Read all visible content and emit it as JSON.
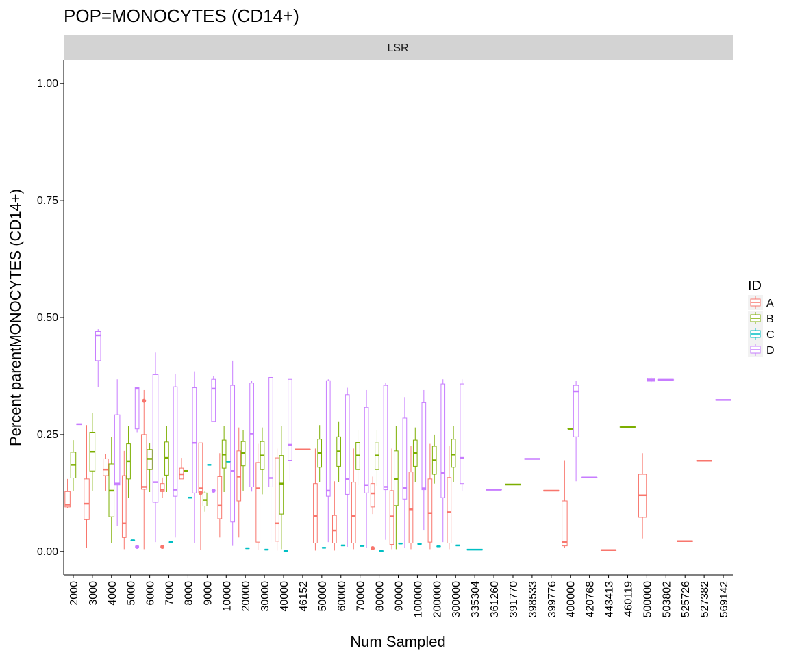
{
  "chart_data": {
    "type": "boxplot",
    "title": "POP=MONOCYTES (CD14+)",
    "facet": "LSR",
    "xlabel": "Num Sampled",
    "ylabel": "Percent parentMONOCYTES (CD14+)",
    "ylim": [
      -0.05,
      1.05
    ],
    "yticks": [
      0.0,
      0.25,
      0.5,
      0.75,
      1.0
    ],
    "ytick_labels": [
      "0.00",
      "0.25",
      "0.50",
      "0.75",
      "1.00"
    ],
    "grid": false,
    "legend": {
      "title": "ID",
      "position": "right"
    },
    "categories": [
      "2000",
      "3000",
      "4000",
      "5000",
      "6000",
      "7000",
      "8000",
      "9000",
      "10000",
      "20000",
      "30000",
      "40000",
      "46152",
      "50000",
      "60000",
      "70000",
      "80000",
      "90000",
      "100000",
      "200000",
      "300000",
      "335304",
      "361260",
      "391770",
      "398533",
      "399776",
      "400000",
      "420768",
      "443413",
      "460119",
      "500000",
      "503802",
      "525726",
      "527382",
      "569142"
    ],
    "series": [
      {
        "name": "A",
        "color": "#F8766D",
        "boxes": [
          {
            "x": "2000",
            "min": 0.092,
            "q1": 0.095,
            "med": 0.1,
            "q3": 0.128,
            "max": 0.155
          },
          {
            "x": "3000",
            "min": 0.008,
            "q1": 0.068,
            "med": 0.102,
            "q3": 0.155,
            "max": 0.27
          },
          {
            "x": "4000",
            "min": 0.13,
            "q1": 0.162,
            "med": 0.175,
            "q3": 0.198,
            "max": 0.208
          },
          {
            "x": "5000",
            "min": 0.005,
            "q1": 0.03,
            "med": 0.06,
            "q3": 0.162,
            "max": 0.215
          },
          {
            "x": "6000",
            "min": 0.005,
            "q1": 0.133,
            "med": 0.138,
            "q3": 0.25,
            "max": 0.345,
            "outliers": [
              0.322
            ]
          },
          {
            "x": "7000",
            "min": 0.115,
            "q1": 0.128,
            "med": 0.132,
            "q3": 0.145,
            "max": 0.158,
            "outliers": [
              0.01
            ]
          },
          {
            "x": "8000",
            "min": 0.155,
            "q1": 0.155,
            "med": 0.165,
            "q3": 0.178,
            "max": 0.2
          },
          {
            "x": "9000",
            "min": 0.004,
            "q1": 0.125,
            "med": 0.135,
            "q3": 0.232,
            "max": 0.232,
            "outliers": [
              0.125
            ]
          },
          {
            "x": "10000",
            "min": 0.03,
            "q1": 0.07,
            "med": 0.098,
            "q3": 0.16,
            "max": 0.21
          },
          {
            "x": "20000",
            "min": 0.03,
            "q1": 0.108,
            "med": 0.16,
            "q3": 0.215,
            "max": 0.265
          },
          {
            "x": "30000",
            "min": 0.003,
            "q1": 0.02,
            "med": 0.135,
            "q3": 0.19,
            "max": 0.23
          },
          {
            "x": "40000",
            "min": 0.002,
            "q1": 0.022,
            "med": 0.06,
            "q3": 0.2,
            "max": 0.22
          },
          {
            "x": "46152",
            "min": 0.218,
            "q1": 0.218,
            "med": 0.218,
            "q3": 0.218,
            "max": 0.218
          },
          {
            "x": "50000",
            "min": 0.002,
            "q1": 0.018,
            "med": 0.076,
            "q3": 0.145,
            "max": 0.22
          },
          {
            "x": "60000",
            "min": 0.002,
            "q1": 0.018,
            "med": 0.045,
            "q3": 0.077,
            "max": 0.15
          },
          {
            "x": "70000",
            "min": 0.005,
            "q1": 0.018,
            "med": 0.076,
            "q3": 0.148,
            "max": 0.22
          },
          {
            "x": "80000",
            "min": 0.08,
            "q1": 0.095,
            "med": 0.124,
            "q3": 0.145,
            "max": 0.16,
            "outliers": [
              0.007
            ]
          },
          {
            "x": "90000",
            "min": 0.005,
            "q1": 0.015,
            "med": 0.075,
            "q3": 0.13,
            "max": 0.22
          },
          {
            "x": "100000",
            "min": 0.005,
            "q1": 0.018,
            "med": 0.09,
            "q3": 0.17,
            "max": 0.225
          },
          {
            "x": "200000",
            "min": 0.005,
            "q1": 0.02,
            "med": 0.082,
            "q3": 0.155,
            "max": 0.23
          },
          {
            "x": "300000",
            "min": 0.005,
            "q1": 0.018,
            "med": 0.084,
            "q3": 0.158,
            "max": 0.225
          },
          {
            "x": "399776",
            "min": 0.13,
            "q1": 0.13,
            "med": 0.13,
            "q3": 0.13,
            "max": 0.13
          },
          {
            "x": "400000",
            "min": 0.008,
            "q1": 0.012,
            "med": 0.02,
            "q3": 0.108,
            "max": 0.195
          },
          {
            "x": "443413",
            "min": 0.003,
            "q1": 0.003,
            "med": 0.003,
            "q3": 0.003,
            "max": 0.003
          },
          {
            "x": "500000",
            "min": 0.028,
            "q1": 0.073,
            "med": 0.12,
            "q3": 0.165,
            "max": 0.21
          },
          {
            "x": "525726",
            "min": 0.022,
            "q1": 0.022,
            "med": 0.022,
            "q3": 0.022,
            "max": 0.022
          },
          {
            "x": "527382",
            "min": 0.194,
            "q1": 0.194,
            "med": 0.194,
            "q3": 0.194,
            "max": 0.194
          }
        ]
      },
      {
        "name": "B",
        "color": "#7CAE00",
        "boxes": [
          {
            "x": "2000",
            "min": 0.13,
            "q1": 0.157,
            "med": 0.185,
            "q3": 0.212,
            "max": 0.238
          },
          {
            "x": "3000",
            "min": 0.13,
            "q1": 0.172,
            "med": 0.213,
            "q3": 0.255,
            "max": 0.296
          },
          {
            "x": "4000",
            "min": 0.018,
            "q1": 0.074,
            "med": 0.13,
            "q3": 0.187,
            "max": 0.245
          },
          {
            "x": "5000",
            "min": 0.115,
            "q1": 0.155,
            "med": 0.193,
            "q3": 0.23,
            "max": 0.268
          },
          {
            "x": "6000",
            "min": 0.127,
            "q1": 0.175,
            "med": 0.198,
            "q3": 0.218,
            "max": 0.232
          },
          {
            "x": "7000",
            "min": 0.127,
            "q1": 0.163,
            "med": 0.2,
            "q3": 0.234,
            "max": 0.268
          },
          {
            "x": "8000",
            "min": 0.172,
            "q1": 0.172,
            "med": 0.172,
            "q3": 0.172,
            "max": 0.172
          },
          {
            "x": "9000",
            "min": 0.085,
            "q1": 0.097,
            "med": 0.11,
            "q3": 0.125,
            "max": 0.13
          },
          {
            "x": "10000",
            "min": 0.127,
            "q1": 0.178,
            "med": 0.207,
            "q3": 0.238,
            "max": 0.268
          },
          {
            "x": "20000",
            "min": 0.13,
            "q1": 0.183,
            "med": 0.21,
            "q3": 0.235,
            "max": 0.26
          },
          {
            "x": "30000",
            "min": 0.122,
            "q1": 0.175,
            "med": 0.205,
            "q3": 0.235,
            "max": 0.265
          },
          {
            "x": "40000",
            "min": 0.005,
            "q1": 0.08,
            "med": 0.145,
            "q3": 0.205,
            "max": 0.268
          },
          {
            "x": "50000",
            "min": 0.148,
            "q1": 0.18,
            "med": 0.21,
            "q3": 0.24,
            "max": 0.27
          },
          {
            "x": "60000",
            "min": 0.148,
            "q1": 0.182,
            "med": 0.214,
            "q3": 0.245,
            "max": 0.278
          },
          {
            "x": "70000",
            "min": 0.142,
            "q1": 0.175,
            "med": 0.205,
            "q3": 0.233,
            "max": 0.26
          },
          {
            "x": "80000",
            "min": 0.14,
            "q1": 0.175,
            "med": 0.205,
            "q3": 0.232,
            "max": 0.26
          },
          {
            "x": "90000",
            "min": 0.005,
            "q1": 0.098,
            "med": 0.155,
            "q3": 0.215,
            "max": 0.268
          },
          {
            "x": "100000",
            "min": 0.148,
            "q1": 0.182,
            "med": 0.21,
            "q3": 0.238,
            "max": 0.265
          },
          {
            "x": "200000",
            "min": 0.145,
            "q1": 0.165,
            "med": 0.195,
            "q3": 0.225,
            "max": 0.25
          },
          {
            "x": "300000",
            "min": 0.148,
            "q1": 0.18,
            "med": 0.207,
            "q3": 0.24,
            "max": 0.268
          },
          {
            "x": "391770",
            "min": 0.143,
            "q1": 0.143,
            "med": 0.143,
            "q3": 0.143,
            "max": 0.143
          },
          {
            "x": "400000",
            "min": 0.262,
            "q1": 0.262,
            "med": 0.262,
            "q3": 0.262,
            "max": 0.262
          },
          {
            "x": "460119",
            "min": 0.266,
            "q1": 0.266,
            "med": 0.266,
            "q3": 0.266,
            "max": 0.266
          }
        ]
      },
      {
        "name": "C",
        "color": "#00BFC4",
        "boxes": [
          {
            "x": "5000",
            "min": 0.024,
            "q1": 0.024,
            "med": 0.024,
            "q3": 0.024,
            "max": 0.024
          },
          {
            "x": "7000",
            "min": 0.02,
            "q1": 0.02,
            "med": 0.02,
            "q3": 0.02,
            "max": 0.02
          },
          {
            "x": "8000",
            "min": 0.115,
            "q1": 0.115,
            "med": 0.115,
            "q3": 0.115,
            "max": 0.115
          },
          {
            "x": "9000",
            "min": 0.185,
            "q1": 0.185,
            "med": 0.185,
            "q3": 0.185,
            "max": 0.185
          },
          {
            "x": "10000",
            "min": 0.192,
            "q1": 0.192,
            "med": 0.192,
            "q3": 0.192,
            "max": 0.192
          },
          {
            "x": "20000",
            "min": 0.007,
            "q1": 0.007,
            "med": 0.007,
            "q3": 0.007,
            "max": 0.007
          },
          {
            "x": "30000",
            "min": 0.004,
            "q1": 0.004,
            "med": 0.004,
            "q3": 0.004,
            "max": 0.004
          },
          {
            "x": "40000",
            "min": 0.001,
            "q1": 0.001,
            "med": 0.001,
            "q3": 0.001,
            "max": 0.001
          },
          {
            "x": "50000",
            "min": 0.008,
            "q1": 0.008,
            "med": 0.008,
            "q3": 0.008,
            "max": 0.008
          },
          {
            "x": "60000",
            "min": 0.013,
            "q1": 0.013,
            "med": 0.013,
            "q3": 0.013,
            "max": 0.013
          },
          {
            "x": "70000",
            "min": 0.012,
            "q1": 0.012,
            "med": 0.012,
            "q3": 0.012,
            "max": 0.012
          },
          {
            "x": "80000",
            "min": 0.001,
            "q1": 0.001,
            "med": 0.001,
            "q3": 0.001,
            "max": 0.001
          },
          {
            "x": "90000",
            "min": 0.017,
            "q1": 0.017,
            "med": 0.017,
            "q3": 0.017,
            "max": 0.017
          },
          {
            "x": "100000",
            "min": 0.016,
            "q1": 0.016,
            "med": 0.016,
            "q3": 0.016,
            "max": 0.016
          },
          {
            "x": "200000",
            "min": 0.011,
            "q1": 0.011,
            "med": 0.011,
            "q3": 0.011,
            "max": 0.011
          },
          {
            "x": "300000",
            "min": 0.013,
            "q1": 0.013,
            "med": 0.013,
            "q3": 0.013,
            "max": 0.013
          },
          {
            "x": "335304",
            "min": 0.004,
            "q1": 0.004,
            "med": 0.004,
            "q3": 0.004,
            "max": 0.004
          }
        ]
      },
      {
        "name": "D",
        "color": "#C77CFF",
        "boxes": [
          {
            "x": "2000",
            "min": 0.272,
            "q1": 0.272,
            "med": 0.272,
            "q3": 0.272,
            "max": 0.272
          },
          {
            "x": "3000",
            "min": 0.352,
            "q1": 0.408,
            "med": 0.462,
            "q3": 0.47,
            "max": 0.475
          },
          {
            "x": "4000",
            "min": 0.055,
            "q1": 0.142,
            "med": 0.145,
            "q3": 0.292,
            "max": 0.368
          },
          {
            "x": "5000",
            "min": 0.255,
            "q1": 0.262,
            "med": 0.348,
            "q3": 0.35,
            "max": 0.352,
            "outliers": [
              0.01
            ]
          },
          {
            "x": "6000",
            "min": 0.02,
            "q1": 0.105,
            "med": 0.148,
            "q3": 0.378,
            "max": 0.425
          },
          {
            "x": "7000",
            "min": 0.03,
            "q1": 0.118,
            "med": 0.132,
            "q3": 0.352,
            "max": 0.38
          },
          {
            "x": "8000",
            "min": 0.018,
            "q1": 0.125,
            "med": 0.232,
            "q3": 0.35,
            "max": 0.385
          },
          {
            "x": "9000",
            "min": 0.278,
            "q1": 0.278,
            "med": 0.348,
            "q3": 0.368,
            "max": 0.375,
            "outliers": [
              0.13
            ]
          },
          {
            "x": "10000",
            "min": 0.012,
            "q1": 0.063,
            "med": 0.172,
            "q3": 0.355,
            "max": 0.408
          },
          {
            "x": "20000",
            "min": 0.128,
            "q1": 0.138,
            "med": 0.252,
            "q3": 0.36,
            "max": 0.365
          },
          {
            "x": "30000",
            "min": 0.018,
            "q1": 0.138,
            "med": 0.157,
            "q3": 0.372,
            "max": 0.39
          },
          {
            "x": "40000",
            "min": 0.15,
            "q1": 0.195,
            "med": 0.228,
            "q3": 0.368,
            "max": 0.368
          },
          {
            "x": "50000",
            "min": 0.02,
            "q1": 0.118,
            "med": 0.13,
            "q3": 0.365,
            "max": 0.368
          },
          {
            "x": "60000",
            "min": 0.01,
            "q1": 0.122,
            "med": 0.155,
            "q3": 0.335,
            "max": 0.35
          },
          {
            "x": "70000",
            "min": 0.008,
            "q1": 0.125,
            "med": 0.142,
            "q3": 0.308,
            "max": 0.345
          },
          {
            "x": "80000",
            "min": 0.025,
            "q1": 0.132,
            "med": 0.138,
            "q3": 0.355,
            "max": 0.36
          },
          {
            "x": "90000",
            "min": 0.008,
            "q1": 0.112,
            "med": 0.136,
            "q3": 0.285,
            "max": 0.33
          },
          {
            "x": "100000",
            "min": 0.045,
            "q1": 0.132,
            "med": 0.135,
            "q3": 0.318,
            "max": 0.345
          },
          {
            "x": "200000",
            "min": 0.02,
            "q1": 0.115,
            "med": 0.168,
            "q3": 0.358,
            "max": 0.368
          },
          {
            "x": "300000",
            "min": 0.13,
            "q1": 0.145,
            "med": 0.2,
            "q3": 0.358,
            "max": 0.368
          },
          {
            "x": "361260",
            "min": 0.132,
            "q1": 0.132,
            "med": 0.132,
            "q3": 0.132,
            "max": 0.132
          },
          {
            "x": "398533",
            "min": 0.198,
            "q1": 0.198,
            "med": 0.198,
            "q3": 0.198,
            "max": 0.198
          },
          {
            "x": "400000",
            "min": 0.15,
            "q1": 0.245,
            "med": 0.342,
            "q3": 0.355,
            "max": 0.365
          },
          {
            "x": "420768",
            "min": 0.158,
            "q1": 0.158,
            "med": 0.158,
            "q3": 0.158,
            "max": 0.158
          },
          {
            "x": "500000",
            "min": 0.362,
            "q1": 0.364,
            "med": 0.367,
            "q3": 0.37,
            "max": 0.372
          },
          {
            "x": "503802",
            "min": 0.367,
            "q1": 0.367,
            "med": 0.367,
            "q3": 0.367,
            "max": 0.367
          },
          {
            "x": "569142",
            "min": 0.324,
            "q1": 0.324,
            "med": 0.324,
            "q3": 0.324,
            "max": 0.324
          }
        ]
      }
    ]
  }
}
